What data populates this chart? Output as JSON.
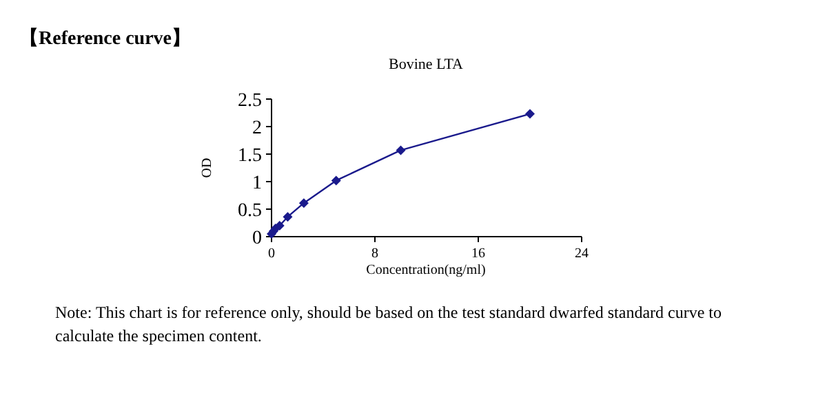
{
  "chart_data": {
    "type": "line",
    "title": "Bovine LTA",
    "xlabel": "Concentration(ng/ml)",
    "ylabel": "OD",
    "annotations": [
      "【Reference curve】",
      "Note: This chart is for reference only, should be based on the test standard dwarfed standard curve to calculate the specimen content."
    ],
    "x": [
      0,
      0.156,
      0.3125,
      0.625,
      1.25,
      2.5,
      5,
      10,
      20
    ],
    "series": [
      {
        "color": "#1a1a8c",
        "values": [
          0.05,
          0.1,
          0.15,
          0.2,
          0.36,
          0.61,
          1.02,
          1.57,
          2.23
        ]
      }
    ],
    "xlim": [
      0,
      24
    ],
    "xticks": [
      0,
      8,
      16,
      24
    ],
    "ylim": [
      0,
      2.5
    ],
    "yticks": [
      0,
      0.5,
      1,
      1.5,
      2,
      2.5
    ],
    "grid": false,
    "marker": "diamond",
    "line_style": "solid"
  }
}
